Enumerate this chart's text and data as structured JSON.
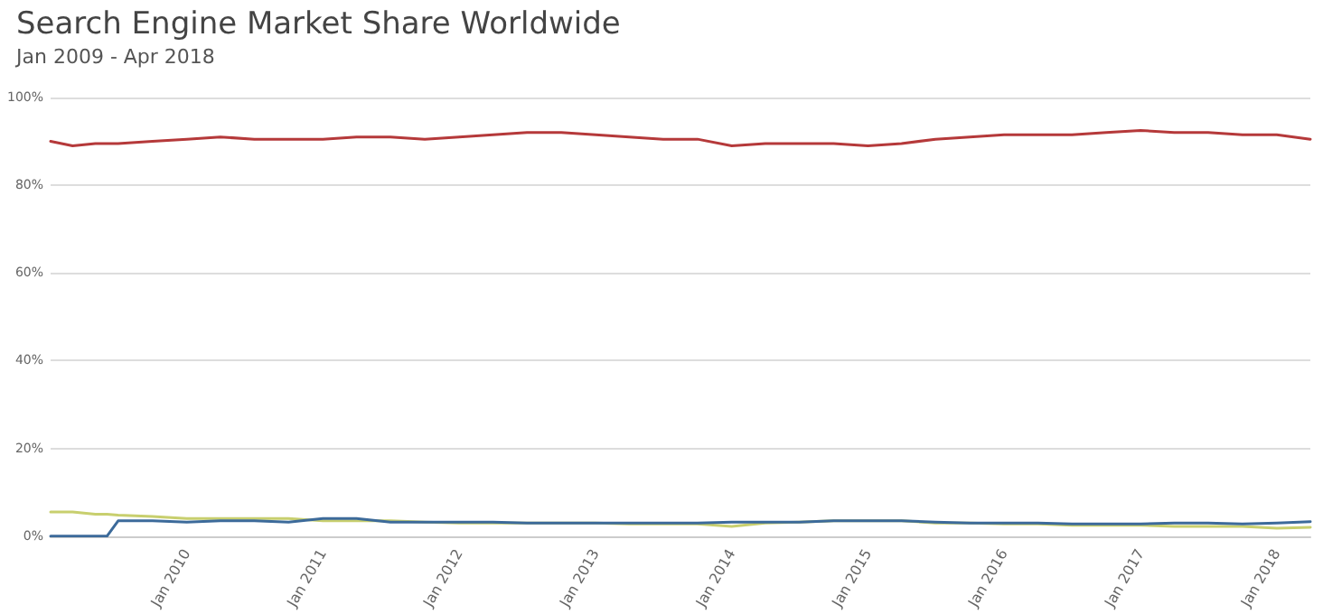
{
  "chart_data": {
    "type": "line",
    "title": "Search Engine Market Share Worldwide",
    "subtitle": "Jan 2009 - Apr 2018",
    "x": [
      "2009-01",
      "2009-03",
      "2009-05",
      "2009-06",
      "2009-07",
      "2009-10",
      "2010-01",
      "2010-04",
      "2010-07",
      "2010-10",
      "2011-01",
      "2011-04",
      "2011-07",
      "2011-10",
      "2012-01",
      "2012-04",
      "2012-07",
      "2012-10",
      "2013-01",
      "2013-04",
      "2013-07",
      "2013-10",
      "2014-01",
      "2014-04",
      "2014-07",
      "2014-10",
      "2015-01",
      "2015-04",
      "2015-07",
      "2015-10",
      "2016-01",
      "2016-04",
      "2016-07",
      "2016-10",
      "2017-01",
      "2017-04",
      "2017-07",
      "2017-10",
      "2018-01",
      "2018-04"
    ],
    "series": [
      {
        "color": "#b5393a",
        "values": [
          90,
          89,
          89.5,
          89.5,
          89.5,
          90,
          90.5,
          91,
          90.5,
          90.5,
          90.5,
          91,
          91,
          90.5,
          91,
          91.5,
          92,
          92,
          91.5,
          91,
          90.5,
          90.5,
          89,
          89.5,
          89.5,
          89.5,
          89,
          89.5,
          90.5,
          91,
          91.5,
          91.5,
          91.5,
          92,
          92.5,
          92,
          92,
          91.5,
          91.5,
          90.5
        ]
      },
      {
        "color": "#c8cf6e",
        "values": [
          5.5,
          5.5,
          5,
          5,
          4.8,
          4.5,
          4,
          4,
          4,
          4,
          3.5,
          3.5,
          3.5,
          3.2,
          3,
          3,
          3,
          3,
          3,
          2.8,
          2.8,
          2.8,
          2.2,
          3,
          3.2,
          3.5,
          3.5,
          3.5,
          3,
          3,
          2.8,
          2.8,
          2.5,
          2.5,
          2.5,
          2.2,
          2.2,
          2.2,
          1.8,
          2
        ]
      },
      {
        "color": "#3c6a9a",
        "values": [
          0,
          0,
          0,
          0,
          3.5,
          3.5,
          3.2,
          3.5,
          3.5,
          3.2,
          4,
          4,
          3.2,
          3.2,
          3.2,
          3.2,
          3,
          3,
          3,
          3,
          3,
          3,
          3.2,
          3.2,
          3.2,
          3.5,
          3.5,
          3.5,
          3.2,
          3,
          3,
          3,
          2.8,
          2.8,
          2.8,
          3,
          3,
          2.8,
          3,
          3.3
        ]
      }
    ],
    "xlim": [
      "2009-01",
      "2018-04"
    ],
    "xticks": [
      {
        "value": "2010-01",
        "label": "Jan 2010"
      },
      {
        "value": "2011-01",
        "label": "Jan 2011"
      },
      {
        "value": "2012-01",
        "label": "Jan 2012"
      },
      {
        "value": "2013-01",
        "label": "Jan 2013"
      },
      {
        "value": "2014-01",
        "label": "Jan 2014"
      },
      {
        "value": "2015-01",
        "label": "Jan 2015"
      },
      {
        "value": "2016-01",
        "label": "Jan 2016"
      },
      {
        "value": "2017-01",
        "label": "Jan 2017"
      },
      {
        "value": "2018-01",
        "label": "Jan 2018"
      }
    ],
    "ylim": [
      0,
      100
    ],
    "yticks": [
      {
        "value": 0,
        "label": "0%"
      },
      {
        "value": 20,
        "label": "20%"
      },
      {
        "value": 40,
        "label": "40%"
      },
      {
        "value": 60,
        "label": "60%"
      },
      {
        "value": 80,
        "label": "80%"
      },
      {
        "value": 100,
        "label": "100%"
      }
    ],
    "grid": "y",
    "marker": "none",
    "line_style": "solid"
  }
}
